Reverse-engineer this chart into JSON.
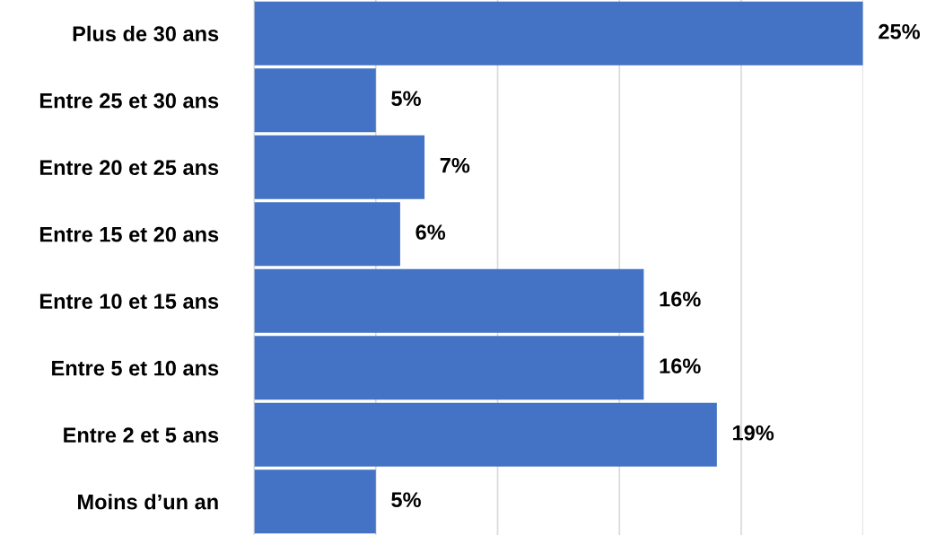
{
  "chart_data": {
    "type": "bar",
    "orientation": "horizontal",
    "categories": [
      "Plus de 30 ans",
      "Entre 25 et 30 ans",
      "Entre 20 et 25 ans",
      "Entre 15 et 20 ans",
      "Entre 10 et 15 ans",
      "Entre 5 et 10 ans",
      "Entre 2 et 5 ans",
      "Moins d’un an"
    ],
    "values": [
      25,
      5,
      7,
      6,
      16,
      16,
      19,
      5
    ],
    "value_labels": [
      "25%",
      "5%",
      "7%",
      "6%",
      "16%",
      "16%",
      "19%",
      "5%"
    ],
    "color": "#4472c4",
    "xticks": [
      {
        "value": 0,
        "label": null
      },
      {
        "value": 5,
        "label": null
      },
      {
        "value": 10,
        "label": null
      },
      {
        "value": 15,
        "label": null
      },
      {
        "value": 20,
        "label": null
      },
      {
        "value": 25,
        "label": null
      }
    ],
    "tick_labels": "y",
    "grid": "x",
    "legend": false
  }
}
